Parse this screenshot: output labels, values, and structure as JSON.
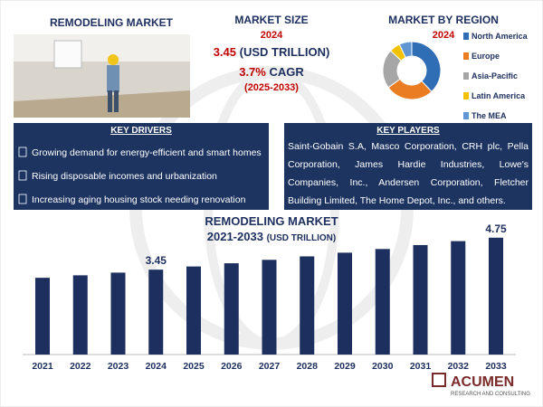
{
  "header": {
    "title": "REMODELING MARKET"
  },
  "market_size": {
    "title": "MARKET SIZE",
    "year": "2024",
    "value": "3.45",
    "unit": "(USD TRILLION)",
    "cagr_value": "3.7%",
    "cagr_label": "CAGR",
    "cagr_period": "(2025-2033)"
  },
  "key_drivers": {
    "title": "KEY DRIVERS",
    "items": [
      "Growing demand for energy-efficient and smart homes",
      "Rising disposable incomes and urbanization",
      "Increasing aging housing stock needing renovation"
    ]
  },
  "key_players": {
    "title": "KEY PLAYERS",
    "text": "Saint-Gobain S.A, Masco Corporation, CRH plc, Pella Corporation, James Hardie Industries, Lowe's Companies, Inc., Andersen Corporation, Fletcher Building Limited, The Home Depot, Inc., and others."
  },
  "logo": {
    "name": "ACUMEN",
    "tagline": "RESEARCH AND CONSULTING"
  },
  "chart_data": [
    {
      "type": "donut",
      "title": "MARKET BY REGION",
      "subtitle": "2024",
      "categories": [
        "North America",
        "Europe",
        "Asia-Pacific",
        "Latin America",
        "The MEA"
      ],
      "values": [
        38,
        27,
        22,
        6,
        7
      ],
      "colors": [
        "#2f6db5",
        "#ea7d22",
        "#a6a6a6",
        "#f2c200",
        "#5f95d3"
      ]
    },
    {
      "type": "bar",
      "title": "REMODELING MARKET",
      "subtitle": "2021-2033",
      "subtitle_unit": "(USD TRILLION)",
      "categories": [
        "2021",
        "2022",
        "2023",
        "2024",
        "2025",
        "2026",
        "2027",
        "2028",
        "2029",
        "2030",
        "2031",
        "2032",
        "2033"
      ],
      "values": [
        3.12,
        3.22,
        3.33,
        3.45,
        3.58,
        3.71,
        3.85,
        3.99,
        4.14,
        4.29,
        4.45,
        4.61,
        4.75
      ],
      "value_labels": [
        null,
        null,
        null,
        "3.45",
        null,
        null,
        null,
        null,
        null,
        null,
        null,
        null,
        "4.75"
      ],
      "color": "#1d2f5e"
    }
  ]
}
